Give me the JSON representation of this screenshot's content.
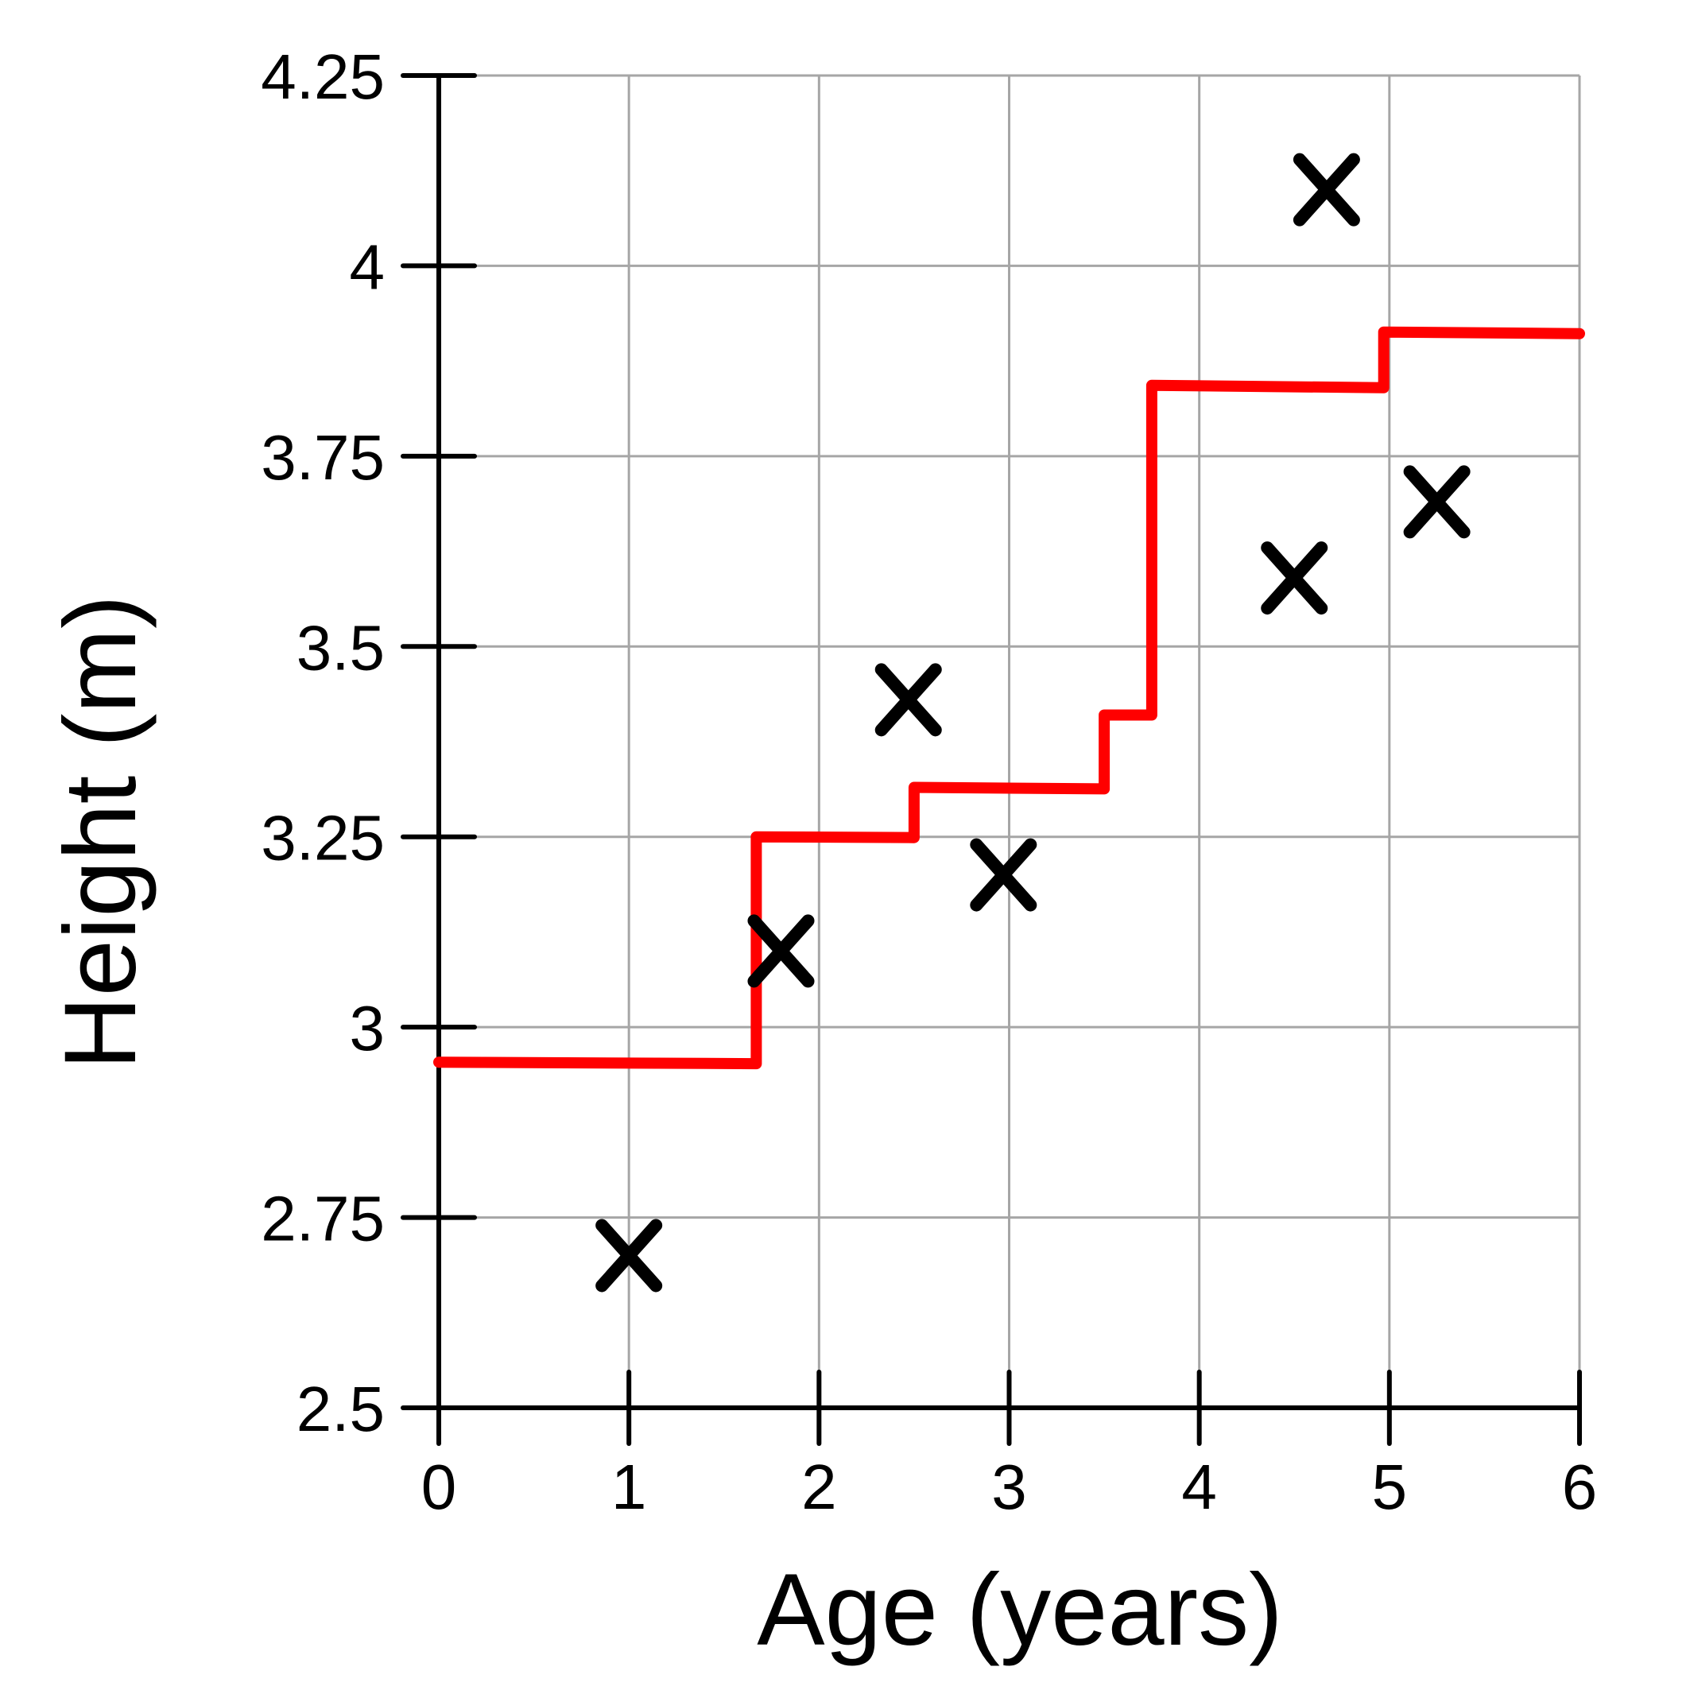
{
  "chart_data": {
    "type": "scatter",
    "xlabel": "Age (years)",
    "ylabel": "Height (m)",
    "xlim": [
      0,
      6
    ],
    "ylim": [
      2.5,
      4.25
    ],
    "x_ticks": [
      0,
      1,
      2,
      3,
      4,
      5,
      6
    ],
    "x_tick_labels": [
      "0",
      "1",
      "2",
      "3",
      "4",
      "5",
      "6"
    ],
    "y_ticks": [
      2.5,
      2.75,
      3,
      3.25,
      3.5,
      3.75,
      4,
      4.25
    ],
    "y_tick_labels": [
      "2.5",
      "2.75",
      "3",
      "3.25",
      "3.5",
      "3.75",
      "4",
      "4.25"
    ],
    "grid": true,
    "series": [
      {
        "type": "scatter",
        "marker": "x",
        "color": "#000000",
        "points": [
          {
            "x": 1.0,
            "y": 2.7
          },
          {
            "x": 1.8,
            "y": 3.1
          },
          {
            "x": 2.47,
            "y": 3.43
          },
          {
            "x": 2.97,
            "y": 3.2
          },
          {
            "x": 4.5,
            "y": 3.59
          },
          {
            "x": 4.67,
            "y": 4.1
          },
          {
            "x": 5.25,
            "y": 3.69
          }
        ]
      },
      {
        "type": "step",
        "color": "#ff0000",
        "points": [
          {
            "x": 0.0,
            "y": 2.954
          },
          {
            "x": 1.67,
            "y": 2.952
          },
          {
            "x": 1.67,
            "y": 3.25
          },
          {
            "x": 2.5,
            "y": 3.249
          },
          {
            "x": 2.5,
            "y": 3.315
          },
          {
            "x": 3.5,
            "y": 3.313
          },
          {
            "x": 3.5,
            "y": 3.41
          },
          {
            "x": 3.75,
            "y": 3.41
          },
          {
            "x": 3.75,
            "y": 3.843
          },
          {
            "x": 4.97,
            "y": 3.84
          },
          {
            "x": 4.97,
            "y": 3.913
          },
          {
            "x": 6.0,
            "y": 3.911
          }
        ]
      }
    ]
  }
}
